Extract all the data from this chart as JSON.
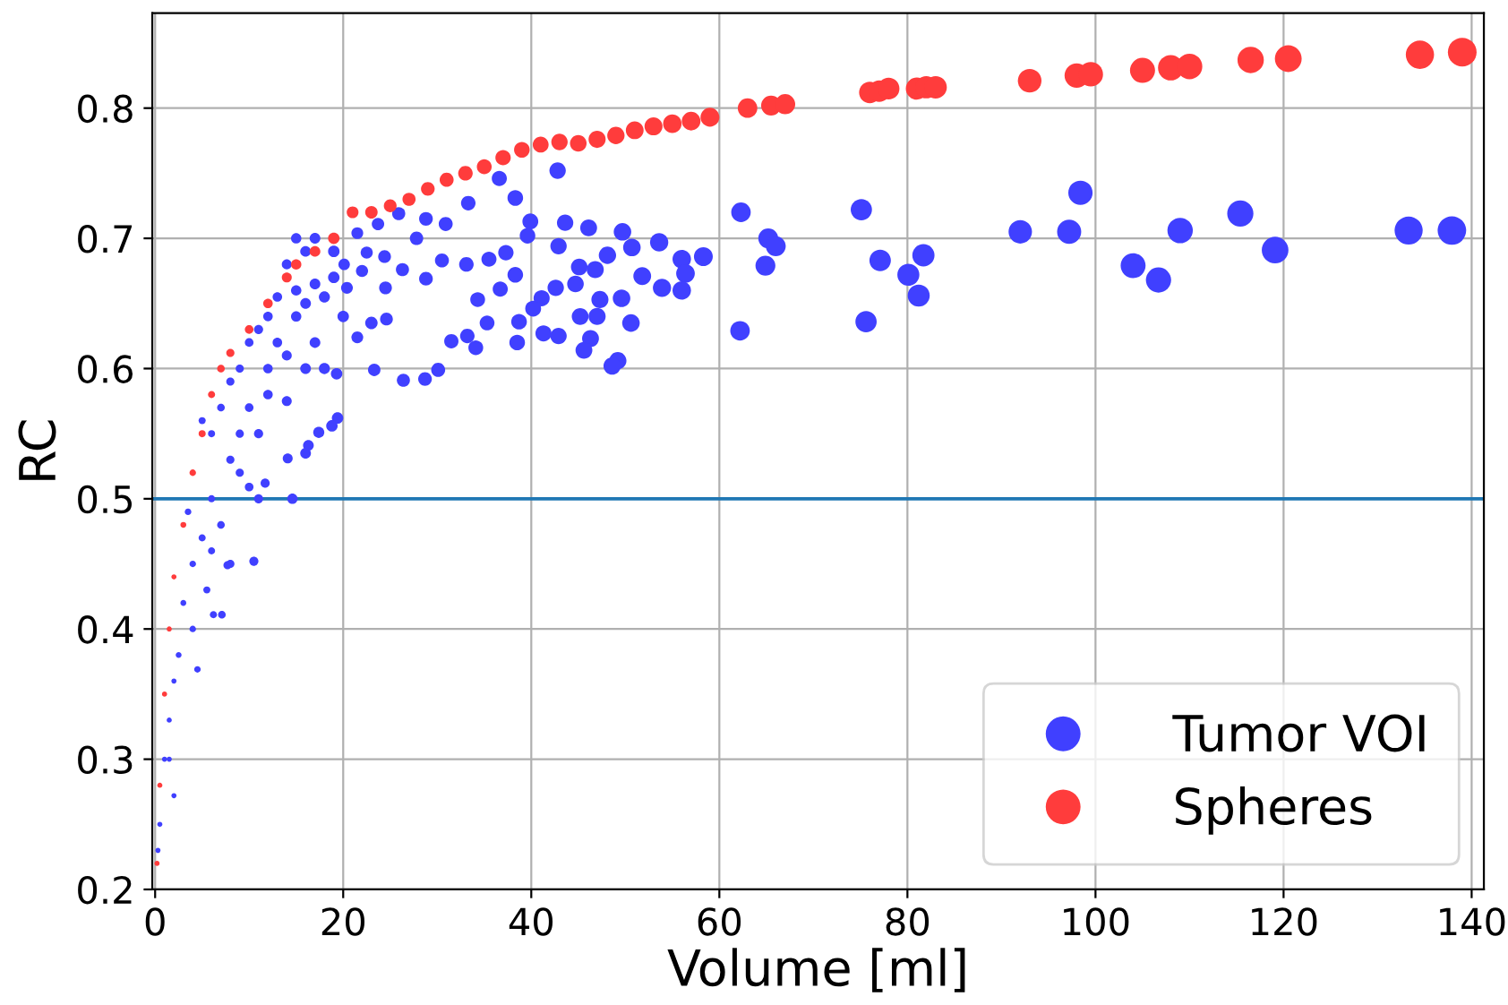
{
  "chart_data": {
    "type": "bubble",
    "xlabel": "Volume [ml]",
    "ylabel": "RC",
    "xlim": [
      -0.3,
      141.3
    ],
    "ylim": [
      0.2,
      0.873
    ],
    "xticks": [
      0,
      20,
      40,
      60,
      80,
      100,
      120,
      140
    ],
    "yticks": [
      0.2,
      0.3,
      0.4,
      0.5,
      0.6,
      0.7,
      0.8
    ],
    "grid": true,
    "legend": "bottom right",
    "marker": "circle",
    "ref_lines": [
      {
        "axis": "y",
        "value": 0.5,
        "color": "#1f77b4"
      }
    ],
    "series": [
      {
        "name": "Tumor VOI",
        "color": "#4040ff",
        "x": [
          92,
          97.2,
          98.4,
          104,
          106.7,
          109,
          115.4,
          119.1,
          133.3,
          137.9,
          62.3,
          65.2,
          66,
          64.9,
          62.2,
          75.1,
          77.1,
          75.6,
          80.1,
          81.7,
          81.2,
          42.8,
          58.3,
          56,
          56.4,
          56,
          53.6,
          50.7,
          49.7,
          51.8,
          53.9,
          49.6,
          50.6,
          49.2,
          48.6,
          46.3,
          45.6,
          47,
          47.3,
          45.1,
          46.8,
          48.1,
          46.1,
          43.6,
          42.9,
          39.9,
          39.6,
          38.3,
          37.3,
          38.3,
          42.6,
          41.1,
          40.2,
          38.7,
          41.3,
          42.9,
          38.5,
          45.2,
          44.7,
          36.6,
          33.3,
          30.9,
          28.8,
          25.9,
          21.5,
          23.7,
          27.8,
          22.5,
          24.4,
          22,
          20.1,
          20.4,
          24.5,
          26.3,
          28.8,
          30.5,
          33.1,
          35.5,
          34.3,
          36.7,
          35.3,
          33.2,
          34.1,
          31.5,
          30.1,
          28.7,
          26.4,
          23.3,
          24.6,
          23,
          21.5,
          19.3,
          19.4,
          18.8,
          17.4,
          16.3,
          16,
          14.1,
          11.7,
          10,
          14.6,
          10.5,
          7.7,
          6.2,
          7.1,
          4.5,
          2,
          5,
          6,
          7,
          8,
          9,
          10,
          11,
          12,
          13,
          15,
          16,
          17,
          18,
          19,
          12,
          14,
          16,
          10,
          11,
          8,
          6,
          5,
          4,
          3,
          2.5,
          1.5,
          1,
          0.5,
          3.5,
          9,
          12,
          14,
          17,
          15,
          13,
          7,
          5.5,
          4,
          2,
          1.5,
          0.3,
          8,
          6,
          11,
          9,
          18,
          20,
          19,
          17,
          16,
          14,
          15
        ],
        "values": [
          0.705,
          0.705,
          0.735,
          0.679,
          0.668,
          0.706,
          0.719,
          0.691,
          0.706,
          0.706,
          0.72,
          0.7,
          0.694,
          0.679,
          0.629,
          0.722,
          0.683,
          0.636,
          0.672,
          0.687,
          0.656,
          0.752,
          0.686,
          0.684,
          0.673,
          0.66,
          0.697,
          0.693,
          0.705,
          0.671,
          0.662,
          0.654,
          0.635,
          0.606,
          0.602,
          0.623,
          0.614,
          0.64,
          0.653,
          0.678,
          0.676,
          0.687,
          0.708,
          0.712,
          0.694,
          0.713,
          0.702,
          0.731,
          0.689,
          0.672,
          0.662,
          0.654,
          0.646,
          0.636,
          0.627,
          0.625,
          0.62,
          0.64,
          0.665,
          0.746,
          0.727,
          0.711,
          0.715,
          0.719,
          0.704,
          0.711,
          0.7,
          0.689,
          0.686,
          0.675,
          0.68,
          0.662,
          0.662,
          0.676,
          0.669,
          0.683,
          0.68,
          0.684,
          0.653,
          0.661,
          0.635,
          0.625,
          0.616,
          0.621,
          0.599,
          0.592,
          0.591,
          0.599,
          0.638,
          0.635,
          0.624,
          0.596,
          0.562,
          0.556,
          0.551,
          0.541,
          0.535,
          0.531,
          0.512,
          0.509,
          0.5,
          0.452,
          0.449,
          0.411,
          0.411,
          0.369,
          0.272,
          0.56,
          0.55,
          0.57,
          0.59,
          0.6,
          0.62,
          0.63,
          0.64,
          0.655,
          0.66,
          0.65,
          0.665,
          0.655,
          0.67,
          0.6,
          0.61,
          0.6,
          0.57,
          0.55,
          0.53,
          0.5,
          0.47,
          0.45,
          0.42,
          0.38,
          0.33,
          0.3,
          0.25,
          0.49,
          0.52,
          0.58,
          0.575,
          0.62,
          0.64,
          0.62,
          0.48,
          0.43,
          0.4,
          0.36,
          0.3,
          0.23,
          0.45,
          0.46,
          0.5,
          0.55,
          0.6,
          0.64,
          0.69,
          0.7,
          0.69,
          0.68,
          0.7
        ],
        "sizes": [
          0.66,
          0.7,
          0.71,
          0.75,
          0.77,
          0.78,
          0.83,
          0.86,
          0.96,
          0.99,
          0.45,
          0.47,
          0.47,
          0.47,
          0.45,
          0.54,
          0.55,
          0.54,
          0.58,
          0.59,
          0.58,
          0.31,
          0.42,
          0.4,
          0.41,
          0.4,
          0.39,
          0.36,
          0.36,
          0.37,
          0.39,
          0.36,
          0.36,
          0.35,
          0.35,
          0.33,
          0.33,
          0.34,
          0.34,
          0.32,
          0.34,
          0.35,
          0.33,
          0.31,
          0.31,
          0.29,
          0.28,
          0.28,
          0.27,
          0.28,
          0.31,
          0.3,
          0.29,
          0.28,
          0.3,
          0.31,
          0.28,
          0.33,
          0.32,
          0.26,
          0.24,
          0.22,
          0.21,
          0.19,
          0.15,
          0.17,
          0.2,
          0.16,
          0.18,
          0.16,
          0.14,
          0.15,
          0.18,
          0.19,
          0.21,
          0.22,
          0.24,
          0.26,
          0.25,
          0.26,
          0.25,
          0.24,
          0.25,
          0.23,
          0.22,
          0.21,
          0.19,
          0.17,
          0.18,
          0.17,
          0.15,
          0.14,
          0.14,
          0.14,
          0.13,
          0.12,
          0.12,
          0.1,
          0.08,
          0.07,
          0.11,
          0.08,
          0.06,
          0.04,
          0.05,
          0.03,
          0.01,
          0.04,
          0.04,
          0.05,
          0.06,
          0.06,
          0.07,
          0.08,
          0.09,
          0.09,
          0.11,
          0.12,
          0.12,
          0.13,
          0.14,
          0.09,
          0.1,
          0.12,
          0.07,
          0.08,
          0.06,
          0.04,
          0.04,
          0.03,
          0.02,
          0.02,
          0.01,
          0.01,
          0.01,
          0.03,
          0.06,
          0.09,
          0.1,
          0.12,
          0.11,
          0.09,
          0.05,
          0.04,
          0.03,
          0.01,
          0.01,
          0.01,
          0.06,
          0.04,
          0.08,
          0.06,
          0.13,
          0.14,
          0.14,
          0.12,
          0.12,
          0.1,
          0.11
        ]
      },
      {
        "name": "Spheres",
        "color": "#ff3c3c",
        "x": [
          0.2,
          0.5,
          1,
          1.5,
          2,
          3,
          4,
          5,
          6,
          7,
          8,
          10,
          12,
          14,
          15,
          17,
          19,
          21,
          23,
          25,
          27,
          29,
          31,
          33,
          35,
          37,
          39,
          41,
          43,
          45,
          47,
          49,
          51,
          53,
          55,
          57,
          59,
          63,
          65.5,
          67,
          76,
          77,
          78,
          81,
          82,
          83,
          93,
          98,
          99.5,
          105,
          108,
          110,
          116.5,
          120.5,
          134.5,
          139
        ],
        "values": [
          0.22,
          0.28,
          0.35,
          0.4,
          0.44,
          0.48,
          0.52,
          0.55,
          0.58,
          0.6,
          0.612,
          0.63,
          0.65,
          0.67,
          0.68,
          0.69,
          0.7,
          0.72,
          0.72,
          0.725,
          0.73,
          0.738,
          0.745,
          0.75,
          0.755,
          0.762,
          0.768,
          0.772,
          0.774,
          0.773,
          0.776,
          0.779,
          0.783,
          0.786,
          0.788,
          0.79,
          0.793,
          0.8,
          0.802,
          0.803,
          0.812,
          0.813,
          0.815,
          0.815,
          0.816,
          0.816,
          0.821,
          0.825,
          0.826,
          0.829,
          0.831,
          0.832,
          0.837,
          0.838,
          0.841,
          0.843
        ],
        "sizes": [
          0.01,
          0.01,
          0.01,
          0.01,
          0.01,
          0.02,
          0.03,
          0.04,
          0.04,
          0.05,
          0.06,
          0.07,
          0.09,
          0.1,
          0.11,
          0.12,
          0.14,
          0.15,
          0.17,
          0.18,
          0.19,
          0.21,
          0.22,
          0.24,
          0.25,
          0.27,
          0.28,
          0.29,
          0.31,
          0.32,
          0.34,
          0.35,
          0.37,
          0.38,
          0.4,
          0.41,
          0.42,
          0.45,
          0.47,
          0.48,
          0.55,
          0.55,
          0.56,
          0.58,
          0.59,
          0.6,
          0.67,
          0.71,
          0.72,
          0.76,
          0.78,
          0.79,
          0.84,
          0.87,
          0.97,
          1.0
        ]
      }
    ]
  }
}
